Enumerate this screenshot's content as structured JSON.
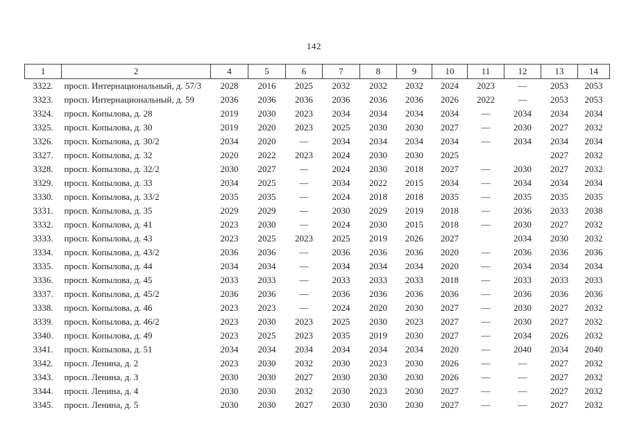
{
  "page": {
    "number": "142"
  },
  "colors": {
    "text": "#1e1e1e",
    "table_border": "#3c3c3c",
    "background": "#ffffff"
  },
  "table": {
    "header": [
      "1",
      "2",
      "4",
      "5",
      "6",
      "7",
      "8",
      "9",
      "10",
      "11",
      "12",
      "13",
      "14"
    ],
    "rows": [
      {
        "num": "3322.",
        "address": "просп. Интернациональный, д. 57/3",
        "values": [
          "2028",
          "2016",
          "2025",
          "2032",
          "2032",
          "2032",
          "2024",
          "2023",
          "—",
          "2053",
          "2053"
        ]
      },
      {
        "num": "3323.",
        "address": "просп. Интернациональный, д. 59",
        "values": [
          "2036",
          "2036",
          "2036",
          "2036",
          "2036",
          "2036",
          "2026",
          "2022",
          "—",
          "2053",
          "2053"
        ]
      },
      {
        "num": "3324.",
        "address": "просп. Копылова, д. 28",
        "values": [
          "2019",
          "2030",
          "2023",
          "2034",
          "2034",
          "2034",
          "2034",
          "—",
          "2034",
          "2034",
          "2034"
        ]
      },
      {
        "num": "3325.",
        "address": "просп. Копылова, д. 30",
        "values": [
          "2019",
          "2020",
          "2023",
          "2025",
          "2030",
          "2030",
          "2027",
          "—",
          "2030",
          "2027",
          "2032"
        ]
      },
      {
        "num": "3326.",
        "address": "просп. Копылова, д. 30/2",
        "values": [
          "2034",
          "2020",
          "—",
          "2034",
          "2034",
          "2034",
          "2034",
          "—",
          "2034",
          "2034",
          "2034"
        ]
      },
      {
        "num": "3327.",
        "address": "просп. Копылова, д. 32",
        "values": [
          "2020",
          "2022",
          "2023",
          "2024",
          "2030",
          "2030",
          "2025",
          "",
          "",
          "2027",
          "2032"
        ]
      },
      {
        "num": "3328.",
        "address": "просп. Копылова, д. 32/2",
        "values": [
          "2030",
          "2027",
          "—",
          "2024",
          "2030",
          "2018",
          "2027",
          "—",
          "2030",
          "2027",
          "2032"
        ]
      },
      {
        "num": "3329.",
        "address": "просп. Копылова, д. 33",
        "values": [
          "2034",
          "2025",
          "—",
          "2034",
          "2022",
          "2015",
          "2034",
          "—",
          "2034",
          "2034",
          "2034"
        ]
      },
      {
        "num": "3330.",
        "address": "просп. Копылова, д. 33/2",
        "values": [
          "2035",
          "2035",
          "—",
          "2024",
          "2018",
          "2018",
          "2035",
          "—",
          "2035",
          "2035",
          "2035"
        ]
      },
      {
        "num": "3331.",
        "address": "просп. Копылова, д. 35",
        "values": [
          "2029",
          "2029",
          "—",
          "2030",
          "2029",
          "2019",
          "2018",
          "—",
          "2036",
          "2033",
          "2038"
        ]
      },
      {
        "num": "3332.",
        "address": "просп. Копылова, д. 41",
        "values": [
          "2023",
          "2030",
          "—",
          "2024",
          "2030",
          "2015",
          "2018",
          "—",
          "2030",
          "2027",
          "2032"
        ]
      },
      {
        "num": "3333.",
        "address": "просп. Копылова, д. 43",
        "values": [
          "2023",
          "2025",
          "2023",
          "2025",
          "2019",
          "2026",
          "2027",
          "",
          "2034",
          "2030",
          "2032"
        ]
      },
      {
        "num": "3334.",
        "address": "просп. Копылова, д. 43/2",
        "values": [
          "2036",
          "2036",
          "—",
          "2036",
          "2036",
          "2036",
          "2020",
          "—",
          "2036",
          "2036",
          "2036"
        ]
      },
      {
        "num": "3335.",
        "address": "просп. Копылова, д. 44",
        "values": [
          "2034",
          "2034",
          "—",
          "2034",
          "2034",
          "2034",
          "2020",
          "—",
          "2034",
          "2034",
          "2034"
        ]
      },
      {
        "num": "3336.",
        "address": "просп. Копылова, д. 45",
        "values": [
          "2033",
          "2033",
          "—",
          "2033",
          "2033",
          "2033",
          "2018",
          "—",
          "2033",
          "2033",
          "2033"
        ]
      },
      {
        "num": "3337.",
        "address": "просп. Копылова, д. 45/2",
        "values": [
          "2036",
          "2036",
          "—",
          "2036",
          "2036",
          "2036",
          "2036",
          "—",
          "2036",
          "2036",
          "2036"
        ]
      },
      {
        "num": "3338.",
        "address": "просп. Копылова, д. 46",
        "values": [
          "2023",
          "2023",
          "—",
          "2024",
          "2020",
          "2030",
          "2027",
          "—",
          "2030",
          "2027",
          "2032"
        ]
      },
      {
        "num": "3339.",
        "address": "просп. Копылова, д. 46/2",
        "values": [
          "2023",
          "2030",
          "2023",
          "2025",
          "2030",
          "2023",
          "2027",
          "—",
          "2030",
          "2027",
          "2032"
        ]
      },
      {
        "num": "3340.",
        "address": "просп. Копылова, д. 49",
        "values": [
          "2023",
          "2025",
          "2023",
          "2035",
          "2019",
          "2030",
          "2027",
          "—",
          "2034",
          "2026",
          "2032"
        ]
      },
      {
        "num": "3341.",
        "address": "просп. Копылова, д. 51",
        "values": [
          "2034",
          "2034",
          "2034",
          "2034",
          "2034",
          "2034",
          "2020",
          "—",
          "2040",
          "2034",
          "2040"
        ]
      },
      {
        "num": "3342.",
        "address": "просп. Ленина, д. 2",
        "values": [
          "2023",
          "2030",
          "2032",
          "2030",
          "2023",
          "2030",
          "2026",
          "—",
          "—",
          "2027",
          "2032"
        ]
      },
      {
        "num": "3343.",
        "address": "просп. Ленина, д. 3",
        "values": [
          "2030",
          "2030",
          "2027",
          "2030",
          "2030",
          "2030",
          "2026",
          "—",
          "—",
          "2027",
          "2032"
        ]
      },
      {
        "num": "3344.",
        "address": "просп. Ленина, д. 4",
        "values": [
          "2030",
          "2030",
          "2032",
          "2030",
          "2023",
          "2030",
          "2027",
          "—",
          "—",
          "2027",
          "2032"
        ]
      },
      {
        "num": "3345.",
        "address": "просп. Ленина, д. 5",
        "values": [
          "2030",
          "2030",
          "2027",
          "2030",
          "2030",
          "2030",
          "2027",
          "—",
          "—",
          "2027",
          "2032"
        ]
      }
    ]
  }
}
